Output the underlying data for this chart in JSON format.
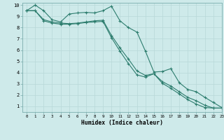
{
  "xlabel": "Humidex (Indice chaleur)",
  "bg_color": "#ceeaea",
  "grid_color": "#b8d8d8",
  "line_color": "#2d7d6e",
  "xlim": [
    -0.5,
    23
  ],
  "ylim": [
    0.5,
    10.2
  ],
  "xticks": [
    0,
    1,
    2,
    3,
    4,
    5,
    6,
    7,
    8,
    9,
    10,
    11,
    12,
    13,
    14,
    15,
    16,
    17,
    18,
    19,
    20,
    21,
    22,
    23
  ],
  "yticks": [
    1,
    2,
    3,
    4,
    5,
    6,
    7,
    8,
    9,
    10
  ],
  "line1_x": [
    0,
    1,
    2,
    3,
    4,
    5,
    6,
    7,
    8,
    9,
    10,
    11,
    12,
    13,
    14,
    15,
    16,
    17,
    18,
    19,
    20,
    21,
    22,
    23
  ],
  "line1_y": [
    9.5,
    10.0,
    9.5,
    8.7,
    8.5,
    9.2,
    9.3,
    9.35,
    9.3,
    9.5,
    9.9,
    8.6,
    8.0,
    7.6,
    5.9,
    4.05,
    4.1,
    4.35,
    3.1,
    2.5,
    2.3,
    1.8,
    1.35,
    0.9
  ],
  "line2_x": [
    0,
    1,
    2,
    3,
    4,
    5,
    6,
    7,
    8,
    9,
    10,
    11,
    12,
    13,
    14,
    15,
    16,
    17,
    18,
    19,
    20,
    21,
    22,
    23
  ],
  "line2_y": [
    9.5,
    9.5,
    8.7,
    8.5,
    8.4,
    8.35,
    8.4,
    8.5,
    8.6,
    8.65,
    7.3,
    6.2,
    5.2,
    4.15,
    3.75,
    3.9,
    3.2,
    2.8,
    2.3,
    1.8,
    1.5,
    1.1,
    0.85,
    0.85
  ],
  "line3_x": [
    0,
    1,
    2,
    3,
    4,
    5,
    6,
    7,
    8,
    9,
    10,
    11,
    12,
    13,
    14,
    15,
    16,
    17,
    18,
    19,
    20,
    21,
    22,
    23
  ],
  "line3_y": [
    9.5,
    9.5,
    8.6,
    8.4,
    8.3,
    8.3,
    8.35,
    8.45,
    8.5,
    8.55,
    7.1,
    5.9,
    4.8,
    3.8,
    3.6,
    3.9,
    3.05,
    2.6,
    2.1,
    1.6,
    1.2,
    0.9,
    0.85,
    0.85
  ]
}
